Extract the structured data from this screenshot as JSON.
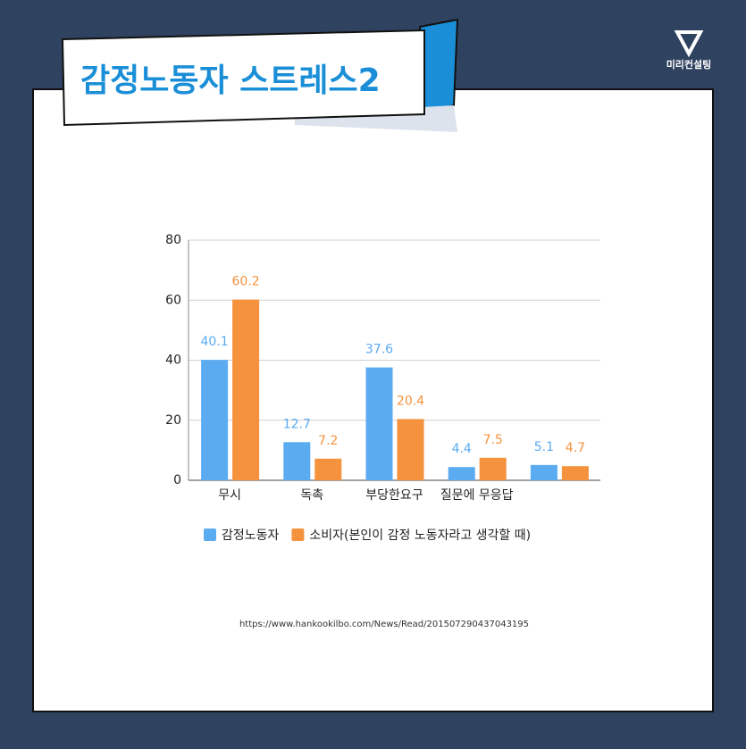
{
  "header": {
    "title": "감정노동자 스트레스2",
    "logo": "미리컨설팅"
  },
  "chart_data": {
    "type": "bar",
    "categories": [
      "무시",
      "독촉",
      "부당한요구",
      "질문에 무응답",
      null
    ],
    "series": [
      {
        "name": "감정노동자",
        "color": "#5aabf0",
        "values": [
          40.1,
          12.7,
          37.6,
          4.4,
          5.1
        ]
      },
      {
        "name": "소비자(본인이 감정 노동자라고 생각할 때)",
        "color": "#f5923e",
        "values": [
          60.2,
          7.2,
          20.4,
          7.5,
          4.7
        ]
      }
    ],
    "ylim": [
      0,
      80
    ],
    "yticks": [
      0,
      20,
      40,
      60,
      80
    ],
    "grid": true
  },
  "source": "https://www.hankookilbo.com/News/Read/201507290437043195"
}
